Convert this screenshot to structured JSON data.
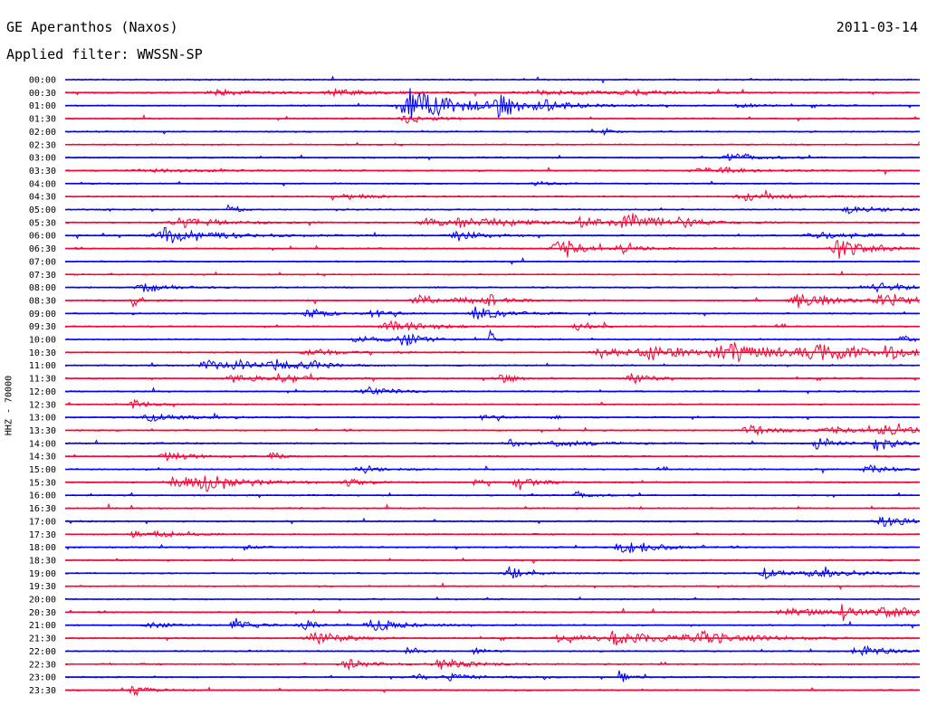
{
  "header": {
    "station": "GE Aperanthos (Naxos)",
    "date": "2011-03-14",
    "filter": "Applied filter: WWSSN-SP"
  },
  "chart_data": {
    "type": "line",
    "title": "GE Aperanthos (Naxos)",
    "subtitle": "Applied filter: WWSSN-SP",
    "ylabel": "HHZ - 70000",
    "xlabel": "",
    "grid": false,
    "row_interval_minutes": 30,
    "colors": [
      "#0000ff",
      "#ff0033"
    ],
    "rows": [
      {
        "label": "00:00",
        "events": []
      },
      {
        "label": "00:30",
        "events": [
          {
            "t": 0.18,
            "amp": 3,
            "dur": 0.06
          },
          {
            "t": 0.32,
            "amp": 3,
            "dur": 0.06
          },
          {
            "t": 0.56,
            "amp": 3,
            "dur": 0.08
          },
          {
            "t": 0.66,
            "amp": 3,
            "dur": 0.04
          }
        ]
      },
      {
        "label": "01:00",
        "events": [
          {
            "t": 0.405,
            "amp": 24,
            "dur": 0.05
          },
          {
            "t": 0.51,
            "amp": 12,
            "dur": 0.03
          },
          {
            "t": 0.555,
            "amp": 5,
            "dur": 0.04
          },
          {
            "t": 0.79,
            "amp": 3,
            "dur": 0.02
          }
        ]
      },
      {
        "label": "01:30",
        "events": [
          {
            "t": 0.4,
            "amp": 5,
            "dur": 0.03
          }
        ]
      },
      {
        "label": "02:00",
        "events": [
          {
            "t": 0.63,
            "amp": 4,
            "dur": 0.01
          }
        ]
      },
      {
        "label": "02:30",
        "events": []
      },
      {
        "label": "03:00",
        "events": [
          {
            "t": 0.78,
            "amp": 6,
            "dur": 0.03
          }
        ]
      },
      {
        "label": "03:30",
        "events": [
          {
            "t": 0.1,
            "amp": 2,
            "dur": 0.08
          },
          {
            "t": 0.75,
            "amp": 3,
            "dur": 0.06
          }
        ]
      },
      {
        "label": "04:00",
        "events": [
          {
            "t": 0.55,
            "amp": 3,
            "dur": 0.02
          }
        ]
      },
      {
        "label": "04:30",
        "events": [
          {
            "t": 0.33,
            "amp": 3,
            "dur": 0.03
          },
          {
            "t": 0.8,
            "amp": 5,
            "dur": 0.05
          }
        ]
      },
      {
        "label": "05:00",
        "events": [
          {
            "t": 0.19,
            "amp": 8,
            "dur": 0.01
          },
          {
            "t": 0.92,
            "amp": 5,
            "dur": 0.04
          }
        ]
      },
      {
        "label": "05:30",
        "events": [
          {
            "t": 0.14,
            "amp": 6,
            "dur": 0.05
          },
          {
            "t": 0.42,
            "amp": 6,
            "dur": 0.03
          },
          {
            "t": 0.47,
            "amp": 6,
            "dur": 0.07
          },
          {
            "t": 0.6,
            "amp": 6,
            "dur": 0.04
          },
          {
            "t": 0.655,
            "amp": 11,
            "dur": 0.04
          },
          {
            "t": 0.72,
            "amp": 5,
            "dur": 0.02
          }
        ]
      },
      {
        "label": "06:00",
        "events": [
          {
            "t": 0.12,
            "amp": 10,
            "dur": 0.06
          },
          {
            "t": 0.46,
            "amp": 6,
            "dur": 0.03
          },
          {
            "t": 0.88,
            "amp": 5,
            "dur": 0.05
          }
        ]
      },
      {
        "label": "06:30",
        "events": [
          {
            "t": 0.575,
            "amp": 18,
            "dur": 0.02
          },
          {
            "t": 0.65,
            "amp": 6,
            "dur": 0.02
          },
          {
            "t": 0.905,
            "amp": 12,
            "dur": 0.03
          }
        ]
      },
      {
        "label": "07:00",
        "events": []
      },
      {
        "label": "07:30",
        "events": []
      },
      {
        "label": "08:00",
        "events": [
          {
            "t": 0.09,
            "amp": 6,
            "dur": 0.03
          },
          {
            "t": 0.95,
            "amp": 6,
            "dur": 0.04
          }
        ]
      },
      {
        "label": "08:30",
        "events": [
          {
            "t": 0.08,
            "amp": 10,
            "dur": 0.01
          },
          {
            "t": 0.41,
            "amp": 7,
            "dur": 0.02
          },
          {
            "t": 0.46,
            "amp": 5,
            "dur": 0.02
          },
          {
            "t": 0.495,
            "amp": 8,
            "dur": 0.02
          },
          {
            "t": 0.86,
            "amp": 10,
            "dur": 0.04
          },
          {
            "t": 0.96,
            "amp": 8,
            "dur": 0.04
          }
        ]
      },
      {
        "label": "09:00",
        "events": [
          {
            "t": 0.285,
            "amp": 9,
            "dur": 0.02
          },
          {
            "t": 0.36,
            "amp": 6,
            "dur": 0.02
          },
          {
            "t": 0.48,
            "amp": 10,
            "dur": 0.03
          }
        ]
      },
      {
        "label": "09:30",
        "events": [
          {
            "t": 0.38,
            "amp": 8,
            "dur": 0.04
          },
          {
            "t": 0.6,
            "amp": 6,
            "dur": 0.02
          }
        ]
      },
      {
        "label": "10:00",
        "events": [
          {
            "t": 0.345,
            "amp": 5,
            "dur": 0.03
          },
          {
            "t": 0.395,
            "amp": 10,
            "dur": 0.02
          },
          {
            "t": 0.497,
            "amp": 14,
            "dur": 0.005
          },
          {
            "t": 0.98,
            "amp": 6,
            "dur": 0.02
          }
        ]
      },
      {
        "label": "10:30",
        "events": [
          {
            "t": 0.29,
            "amp": 4,
            "dur": 0.04
          },
          {
            "t": 0.63,
            "amp": 9,
            "dur": 0.04
          },
          {
            "t": 0.69,
            "amp": 8,
            "dur": 0.05
          },
          {
            "t": 0.78,
            "amp": 12,
            "dur": 0.08
          },
          {
            "t": 0.88,
            "amp": 8,
            "dur": 0.06
          },
          {
            "t": 0.96,
            "amp": 6,
            "dur": 0.03
          }
        ]
      },
      {
        "label": "11:00",
        "events": [
          {
            "t": 0.165,
            "amp": 6,
            "dur": 0.03
          },
          {
            "t": 0.2,
            "amp": 8,
            "dur": 0.02
          },
          {
            "t": 0.245,
            "amp": 8,
            "dur": 0.03
          },
          {
            "t": 0.285,
            "amp": 5,
            "dur": 0.02
          }
        ]
      },
      {
        "label": "11:30",
        "events": [
          {
            "t": 0.2,
            "amp": 6,
            "dur": 0.04
          },
          {
            "t": 0.25,
            "amp": 7,
            "dur": 0.02
          },
          {
            "t": 0.51,
            "amp": 6,
            "dur": 0.02
          },
          {
            "t": 0.66,
            "amp": 8,
            "dur": 0.02
          }
        ]
      },
      {
        "label": "12:00",
        "events": [
          {
            "t": 0.355,
            "amp": 5,
            "dur": 0.03
          }
        ]
      },
      {
        "label": "12:30",
        "events": [
          {
            "t": 0.08,
            "amp": 5,
            "dur": 0.02
          }
        ]
      },
      {
        "label": "13:00",
        "events": [
          {
            "t": 0.1,
            "amp": 5,
            "dur": 0.04
          },
          {
            "t": 0.49,
            "amp": 4,
            "dur": 0.02
          },
          {
            "t": 0.57,
            "amp": 4,
            "dur": 0.01
          }
        ]
      },
      {
        "label": "13:30",
        "events": [
          {
            "t": 0.8,
            "amp": 6,
            "dur": 0.03
          },
          {
            "t": 0.89,
            "amp": 5,
            "dur": 0.03
          },
          {
            "t": 0.96,
            "amp": 6,
            "dur": 0.05
          }
        ]
      },
      {
        "label": "14:00",
        "events": [
          {
            "t": 0.52,
            "amp": 6,
            "dur": 0.02
          },
          {
            "t": 0.58,
            "amp": 4,
            "dur": 0.05
          },
          {
            "t": 0.88,
            "amp": 8,
            "dur": 0.02
          },
          {
            "t": 0.95,
            "amp": 12,
            "dur": 0.02
          }
        ]
      },
      {
        "label": "14:30",
        "events": [
          {
            "t": 0.12,
            "amp": 7,
            "dur": 0.03
          },
          {
            "t": 0.24,
            "amp": 9,
            "dur": 0.01
          }
        ]
      },
      {
        "label": "15:00",
        "events": [
          {
            "t": 0.345,
            "amp": 7,
            "dur": 0.02
          },
          {
            "t": 0.94,
            "amp": 5,
            "dur": 0.03
          }
        ]
      },
      {
        "label": "15:30",
        "events": [
          {
            "t": 0.13,
            "amp": 8,
            "dur": 0.04
          },
          {
            "t": 0.17,
            "amp": 7,
            "dur": 0.05
          },
          {
            "t": 0.33,
            "amp": 4,
            "dur": 0.02
          },
          {
            "t": 0.48,
            "amp": 5,
            "dur": 0.01
          },
          {
            "t": 0.53,
            "amp": 10,
            "dur": 0.02
          }
        ]
      },
      {
        "label": "16:00",
        "events": [
          {
            "t": 0.6,
            "amp": 4,
            "dur": 0.02
          }
        ]
      },
      {
        "label": "16:30",
        "events": []
      },
      {
        "label": "17:00",
        "events": [
          {
            "t": 0.96,
            "amp": 9,
            "dur": 0.04
          }
        ]
      },
      {
        "label": "17:30",
        "events": [
          {
            "t": 0.08,
            "amp": 7,
            "dur": 0.01
          },
          {
            "t": 0.11,
            "amp": 4,
            "dur": 0.03
          }
        ]
      },
      {
        "label": "18:00",
        "events": [
          {
            "t": 0.21,
            "amp": 4,
            "dur": 0.01
          },
          {
            "t": 0.64,
            "amp": 6,
            "dur": 0.02
          },
          {
            "t": 0.66,
            "amp": 10,
            "dur": 0.03
          }
        ]
      },
      {
        "label": "18:30",
        "events": []
      },
      {
        "label": "19:00",
        "events": [
          {
            "t": 0.52,
            "amp": 8,
            "dur": 0.02
          },
          {
            "t": 0.82,
            "amp": 8,
            "dur": 0.02
          },
          {
            "t": 0.88,
            "amp": 5,
            "dur": 0.05
          }
        ]
      },
      {
        "label": "19:30",
        "events": []
      },
      {
        "label": "20:00",
        "events": []
      },
      {
        "label": "20:30",
        "events": [
          {
            "t": 0.85,
            "amp": 5,
            "dur": 0.06
          },
          {
            "t": 0.91,
            "amp": 14,
            "dur": 0.01
          },
          {
            "t": 0.96,
            "amp": 6,
            "dur": 0.04
          }
        ]
      },
      {
        "label": "21:00",
        "events": [
          {
            "t": 0.1,
            "amp": 5,
            "dur": 0.02
          },
          {
            "t": 0.2,
            "amp": 8,
            "dur": 0.02
          },
          {
            "t": 0.28,
            "amp": 6,
            "dur": 0.02
          },
          {
            "t": 0.36,
            "amp": 10,
            "dur": 0.03
          }
        ]
      },
      {
        "label": "21:30",
        "events": [
          {
            "t": 0.29,
            "amp": 10,
            "dur": 0.03
          },
          {
            "t": 0.58,
            "amp": 7,
            "dur": 0.03
          },
          {
            "t": 0.65,
            "amp": 8,
            "dur": 0.07
          },
          {
            "t": 0.74,
            "amp": 7,
            "dur": 0.06
          }
        ]
      },
      {
        "label": "22:00",
        "events": [
          {
            "t": 0.4,
            "amp": 4,
            "dur": 0.01
          },
          {
            "t": 0.48,
            "amp": 6,
            "dur": 0.01
          },
          {
            "t": 0.93,
            "amp": 8,
            "dur": 0.03
          }
        ]
      },
      {
        "label": "22:30",
        "events": [
          {
            "t": 0.33,
            "amp": 6,
            "dur": 0.03
          },
          {
            "t": 0.44,
            "amp": 8,
            "dur": 0.03
          }
        ]
      },
      {
        "label": "23:00",
        "events": [
          {
            "t": 0.41,
            "amp": 7,
            "dur": 0.01
          },
          {
            "t": 0.45,
            "amp": 5,
            "dur": 0.03
          },
          {
            "t": 0.65,
            "amp": 9,
            "dur": 0.01
          }
        ]
      },
      {
        "label": "23:30",
        "events": [
          {
            "t": 0.08,
            "amp": 7,
            "dur": 0.02
          }
        ]
      }
    ]
  }
}
